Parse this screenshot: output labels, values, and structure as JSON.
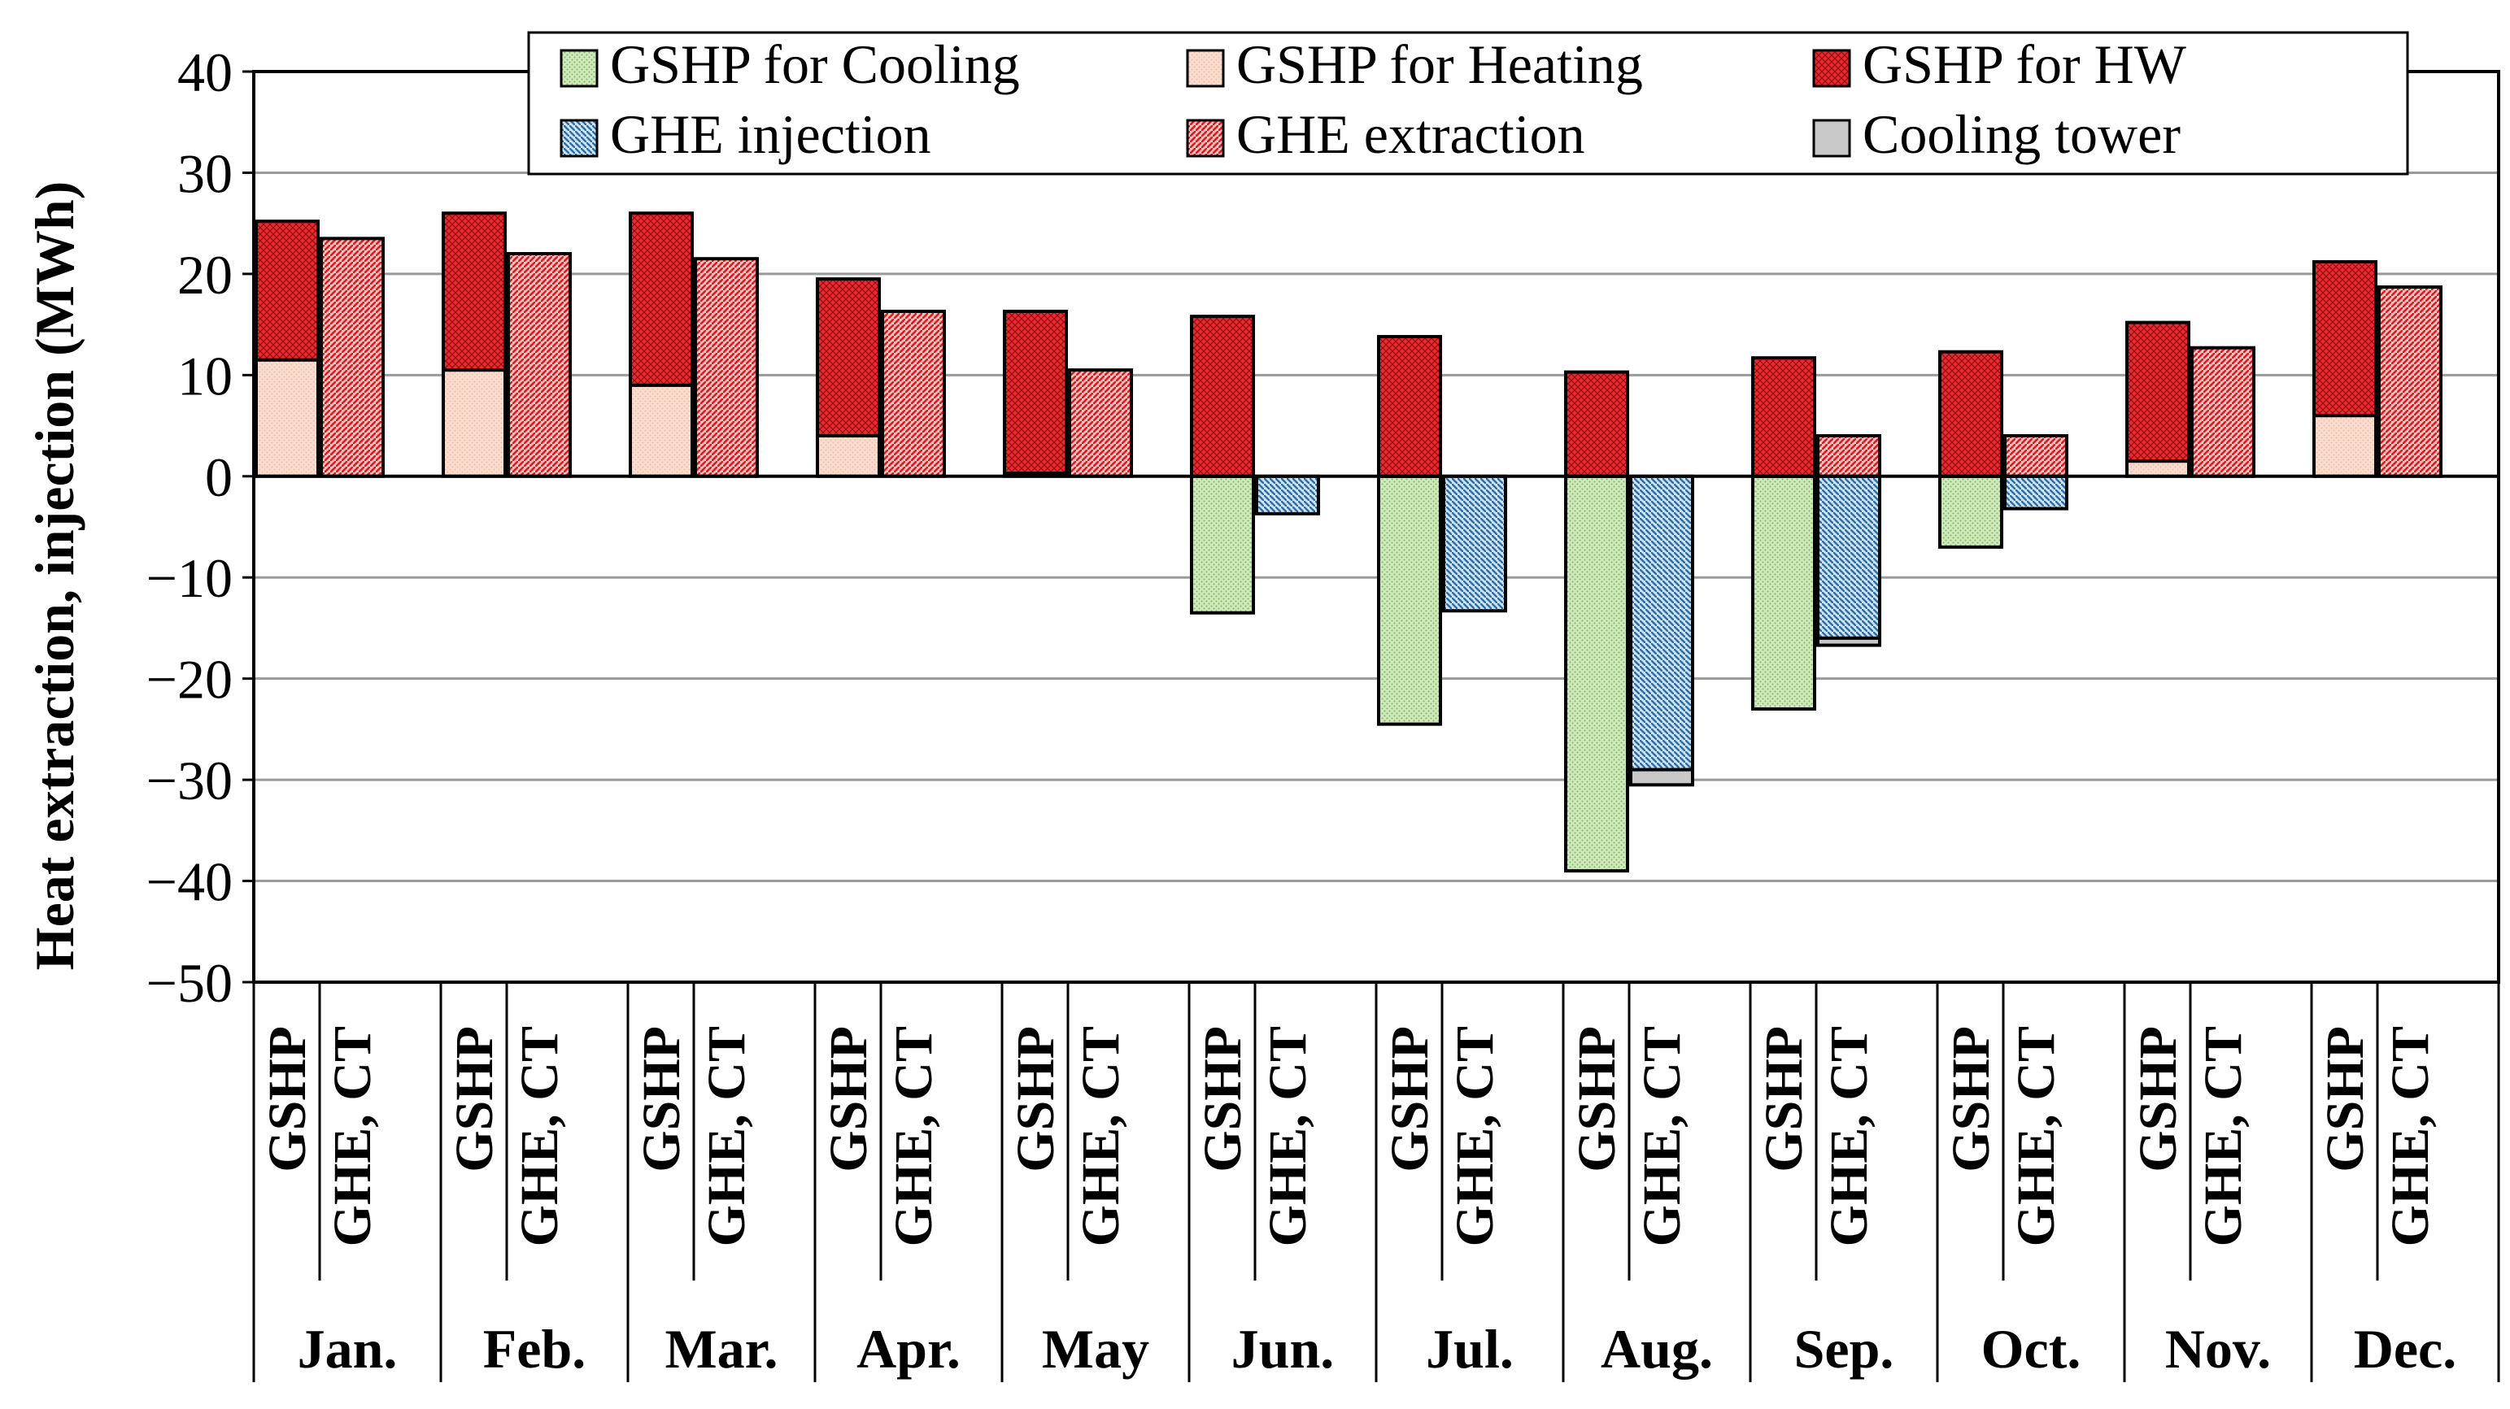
{
  "chart_data": {
    "type": "bar",
    "stacked": true,
    "title": "",
    "xlabel": "",
    "ylabel": "Heat extraction, injection (MWh)",
    "ylim": [
      -50,
      40
    ],
    "yticks": [
      40,
      30,
      20,
      10,
      0,
      -10,
      -20,
      -30,
      -40,
      -50
    ],
    "ytick_labels": [
      "40",
      "30",
      "20",
      "10",
      "0",
      "−10",
      "−20",
      "−30",
      "−40",
      "−50"
    ],
    "grid": true,
    "legend_position": "top",
    "categories": [
      "Jan.",
      "Feb.",
      "Mar.",
      "Apr.",
      "May",
      "Jun.",
      "Jul.",
      "Aug.",
      "Sep.",
      "Oct.",
      "Nov.",
      "Dec."
    ],
    "bar_labels": [
      "GSHP",
      "GHE, CT"
    ],
    "series": [
      {
        "name": "GSHP for Cooling",
        "group": "GSHP",
        "color": "#c9e4b4",
        "pattern": "dots",
        "values": [
          0,
          0,
          0,
          0,
          0,
          -13.5,
          -24.5,
          -39,
          -23,
          -7,
          0,
          0
        ]
      },
      {
        "name": "GSHP for Heating",
        "group": "GSHP",
        "color": "#f7d3c2",
        "pattern": "dots",
        "values": [
          11.5,
          10.5,
          9,
          4,
          0.3,
          0,
          0,
          0,
          0,
          0,
          1.5,
          6
        ]
      },
      {
        "name": "GSHP for HW",
        "group": "GSHP",
        "color": "#e8242c",
        "pattern": "crosshatch",
        "values": [
          13.7,
          15.5,
          17,
          15.5,
          16,
          15.8,
          13.8,
          10.3,
          11.7,
          12.3,
          13.7,
          15.2
        ]
      },
      {
        "name": "GHE injection",
        "group": "GHE, CT",
        "color": "#5c9ed0",
        "pattern": "hatch",
        "values": [
          0,
          0,
          0,
          0,
          0,
          -3.7,
          -13.3,
          -29,
          -16,
          -3.2,
          0,
          0
        ]
      },
      {
        "name": "GHE extraction",
        "group": "GHE, CT",
        "color": "#e8242c",
        "pattern": "hatch",
        "values": [
          23.5,
          22,
          21.5,
          16.3,
          10.5,
          0,
          0,
          0,
          4,
          4,
          12.7,
          18.7
        ]
      },
      {
        "name": "Cooling tower",
        "group": "GHE, CT",
        "color": "#c8c8c8",
        "pattern": "solid",
        "values": [
          0,
          0,
          0,
          0,
          0,
          0,
          0,
          -1.5,
          -0.7,
          0,
          0,
          0
        ]
      }
    ]
  }
}
